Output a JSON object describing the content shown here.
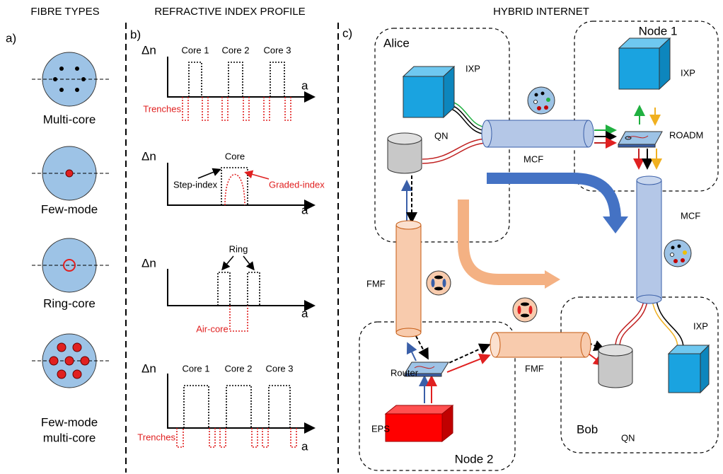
{
  "headers": {
    "fibre_types": "FIBRE TYPES",
    "index_profile": "REFRACTIVE INDEX PROFILE",
    "hybrid_internet": "HYBRID INTERNET"
  },
  "panel_labels": [
    "a)",
    "b)",
    "c)"
  ],
  "fibre_types": [
    [
      "Multi-core"
    ],
    [
      "Few-mode"
    ],
    [
      "Ring-core"
    ],
    [
      "Few-mode",
      "multi-core"
    ]
  ],
  "profiles": [
    {
      "y_axis": "Δn",
      "x_axis": "a",
      "cores": [
        "Core 1",
        "Core 2",
        "Core 3"
      ],
      "trenches": "Trenches"
    },
    {
      "y_axis": "Δn",
      "x_axis": "a",
      "core": "Core",
      "step": "Step-index",
      "graded": "Graded-index"
    },
    {
      "y_axis": "Δn",
      "x_axis": "a",
      "ring": "Ring",
      "air_core": "Air-core"
    },
    {
      "y_axis": "Δn",
      "x_axis": "a",
      "cores": [
        "Core 1",
        "Core 2",
        "Core 3"
      ],
      "trenches": "Trenches"
    }
  ],
  "network": {
    "regions": {
      "alice": "Alice",
      "node1": "Node 1",
      "node2": "Node 2",
      "bob": "Bob"
    },
    "devices": {
      "alice_ixp": "IXP",
      "node1_ixp": "IXP",
      "bob_ixp": "IXP",
      "alice_qn": "QN",
      "bob_qn": "QN",
      "roadm": "ROADM",
      "router": "Router",
      "eps": "EPS"
    },
    "fibres": {
      "alice_mcf": "MCF",
      "node1_mcf": "MCF",
      "alice_fmf": "FMF",
      "node2_fmf": "FMF"
    }
  }
}
